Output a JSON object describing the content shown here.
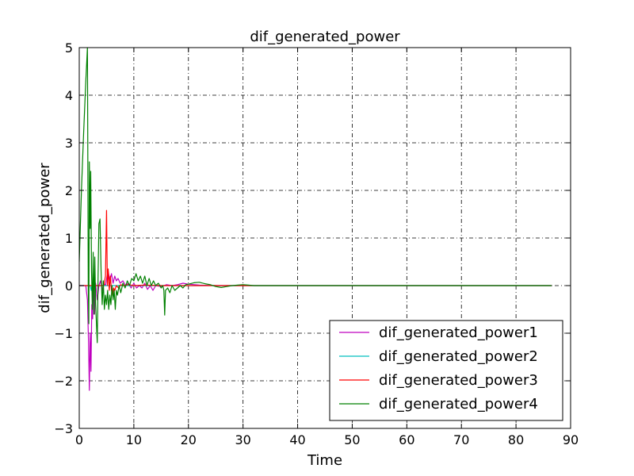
{
  "chart_data": {
    "type": "line",
    "title": "dif_generated_power",
    "xlabel": "Time",
    "ylabel": "dif_generated_power",
    "xlim": [
      0,
      90
    ],
    "ylim": [
      -3,
      5
    ],
    "xticks": [
      0,
      10,
      20,
      30,
      40,
      50,
      60,
      70,
      80,
      90
    ],
    "yticks": [
      -3,
      -2,
      -1,
      0,
      1,
      2,
      3,
      4,
      5
    ],
    "xtick_labels": [
      "0",
      "10",
      "20",
      "30",
      "40",
      "50",
      "60",
      "70",
      "80",
      "90"
    ],
    "ytick_labels": [
      "−3",
      "−2",
      "−1",
      "0",
      "1",
      "2",
      "3",
      "4",
      "5"
    ],
    "grid": true,
    "legend_position": "lower-right",
    "series": [
      {
        "name": "dif_generated_power1",
        "color": "#bf00bf",
        "points": [
          [
            0,
            0
          ],
          [
            1.2,
            0
          ],
          [
            1.5,
            -0.3
          ],
          [
            1.7,
            -1.2
          ],
          [
            1.85,
            -2.2
          ],
          [
            2.0,
            -1.0
          ],
          [
            2.15,
            -1.8
          ],
          [
            2.3,
            -0.4
          ],
          [
            2.45,
            -0.7
          ],
          [
            2.6,
            0.1
          ],
          [
            2.8,
            -0.6
          ],
          [
            3.0,
            0.05
          ],
          [
            3.3,
            -0.3
          ],
          [
            3.6,
            0.0
          ],
          [
            3.9,
            0.1
          ],
          [
            4.2,
            -0.1
          ],
          [
            4.5,
            0.05
          ],
          [
            4.8,
            0.0
          ],
          [
            5.1,
            0.2
          ],
          [
            5.3,
            0.3
          ],
          [
            5.6,
            0.1
          ],
          [
            5.9,
            0.25
          ],
          [
            6.2,
            0.05
          ],
          [
            6.5,
            0.2
          ],
          [
            6.8,
            0.1
          ],
          [
            7.1,
            0.15
          ],
          [
            7.5,
            0.05
          ],
          [
            8,
            0.1
          ],
          [
            8.5,
            0.0
          ],
          [
            9,
            0.05
          ],
          [
            9.5,
            -0.05
          ],
          [
            10,
            0.05
          ],
          [
            10.5,
            -0.05
          ],
          [
            11,
            0.0
          ],
          [
            11.5,
            -0.05
          ],
          [
            12,
            0.05
          ],
          [
            12.5,
            -0.08
          ],
          [
            13,
            0.0
          ],
          [
            13.5,
            -0.1
          ],
          [
            14,
            0.0
          ],
          [
            15,
            -0.02
          ],
          [
            16,
            0.02
          ],
          [
            17,
            0.0
          ],
          [
            18,
            0.02
          ],
          [
            19,
            0.05
          ],
          [
            20,
            0.03
          ],
          [
            22,
            0.01
          ],
          [
            25,
            0.0
          ],
          [
            30,
            0.0
          ],
          [
            40,
            0.0
          ],
          [
            86.5,
            0.0
          ]
        ]
      },
      {
        "name": "dif_generated_power2",
        "color": "#00bfbf",
        "points": [
          [
            0,
            0
          ],
          [
            2.0,
            0
          ],
          [
            2.2,
            -0.1
          ],
          [
            2.4,
            0.05
          ],
          [
            3,
            0.0
          ],
          [
            86.5,
            0.0
          ]
        ]
      },
      {
        "name": "dif_generated_power3",
        "color": "#ff0000",
        "points": [
          [
            0,
            0
          ],
          [
            4.5,
            0
          ],
          [
            4.8,
            0.2
          ],
          [
            5.0,
            1.58
          ],
          [
            5.15,
            0.0
          ],
          [
            5.3,
            0.35
          ],
          [
            5.5,
            -0.1
          ],
          [
            5.7,
            0.2
          ],
          [
            5.9,
            -0.1
          ],
          [
            6.1,
            -0.2
          ],
          [
            6.3,
            -0.05
          ],
          [
            6.5,
            -0.1
          ],
          [
            6.8,
            0.0
          ],
          [
            7.2,
            -0.05
          ],
          [
            7.6,
            0.02
          ],
          [
            8,
            0.0
          ],
          [
            9,
            0.02
          ],
          [
            10,
            0.0
          ],
          [
            12,
            0.01
          ],
          [
            15,
            0.0
          ],
          [
            20,
            0.0
          ],
          [
            86.5,
            0.0
          ]
        ]
      },
      {
        "name": "dif_generated_power4",
        "color": "#008000",
        "points": [
          [
            0,
            0.5
          ],
          [
            0.4,
            2.0
          ],
          [
            0.8,
            3.2
          ],
          [
            1.2,
            4.3
          ],
          [
            1.5,
            5.0
          ],
          [
            1.65,
            0.0
          ],
          [
            1.75,
            -0.8
          ],
          [
            1.85,
            2.6
          ],
          [
            2.0,
            1.2
          ],
          [
            2.1,
            2.4
          ],
          [
            2.25,
            0.3
          ],
          [
            2.4,
            -0.5
          ],
          [
            2.55,
            0.7
          ],
          [
            2.7,
            -0.6
          ],
          [
            2.85,
            0.6
          ],
          [
            3.0,
            -0.4
          ],
          [
            3.15,
            -0.8
          ],
          [
            3.3,
            -1.2
          ],
          [
            3.45,
            0.2
          ],
          [
            3.6,
            1.3
          ],
          [
            3.8,
            1.4
          ],
          [
            4.0,
            0.3
          ],
          [
            4.2,
            -0.4
          ],
          [
            4.4,
            0.1
          ],
          [
            4.6,
            -0.5
          ],
          [
            4.8,
            -0.2
          ],
          [
            5.0,
            -0.4
          ],
          [
            5.2,
            -0.1
          ],
          [
            5.4,
            -0.5
          ],
          [
            5.6,
            -0.2
          ],
          [
            5.8,
            -0.4
          ],
          [
            6.0,
            0.0
          ],
          [
            6.2,
            -0.3
          ],
          [
            6.4,
            -0.1
          ],
          [
            6.6,
            -0.5
          ],
          [
            6.8,
            -0.1
          ],
          [
            7.0,
            -0.2
          ],
          [
            7.3,
            0.0
          ],
          [
            7.6,
            -0.15
          ],
          [
            8.0,
            0.05
          ],
          [
            8.4,
            -0.05
          ],
          [
            8.8,
            0.1
          ],
          [
            9.2,
            0.0
          ],
          [
            9.6,
            0.15
          ],
          [
            10.0,
            0.1
          ],
          [
            10.4,
            0.25
          ],
          [
            10.8,
            0.1
          ],
          [
            11.2,
            0.2
          ],
          [
            11.6,
            0.05
          ],
          [
            12.0,
            0.2
          ],
          [
            12.4,
            0.0
          ],
          [
            12.8,
            0.15
          ],
          [
            13.2,
            0.0
          ],
          [
            13.6,
            0.1
          ],
          [
            14.0,
            0.0
          ],
          [
            14.5,
            0.05
          ],
          [
            15.0,
            -0.05
          ],
          [
            15.3,
            0.0
          ],
          [
            15.5,
            -0.1
          ],
          [
            15.65,
            -0.62
          ],
          [
            15.8,
            -0.1
          ],
          [
            16.2,
            -0.05
          ],
          [
            16.6,
            -0.15
          ],
          [
            17.0,
            0.0
          ],
          [
            17.5,
            -0.1
          ],
          [
            18.0,
            -0.05
          ],
          [
            18.5,
            0.0
          ],
          [
            19.0,
            -0.05
          ],
          [
            19.5,
            0.02
          ],
          [
            20,
            0.03
          ],
          [
            21,
            0.06
          ],
          [
            22,
            0.07
          ],
          [
            23,
            0.04
          ],
          [
            24,
            0.02
          ],
          [
            25,
            -0.02
          ],
          [
            26,
            -0.04
          ],
          [
            27,
            -0.02
          ],
          [
            28,
            0.0
          ],
          [
            29,
            0.01
          ],
          [
            30,
            0.02
          ],
          [
            31,
            0.01
          ],
          [
            32,
            0.0
          ],
          [
            35,
            0.0
          ],
          [
            40,
            0.0
          ],
          [
            50,
            0.0
          ],
          [
            60,
            0.0
          ],
          [
            70,
            0.0
          ],
          [
            80,
            0.0
          ],
          [
            86.5,
            0.0
          ]
        ]
      }
    ]
  }
}
